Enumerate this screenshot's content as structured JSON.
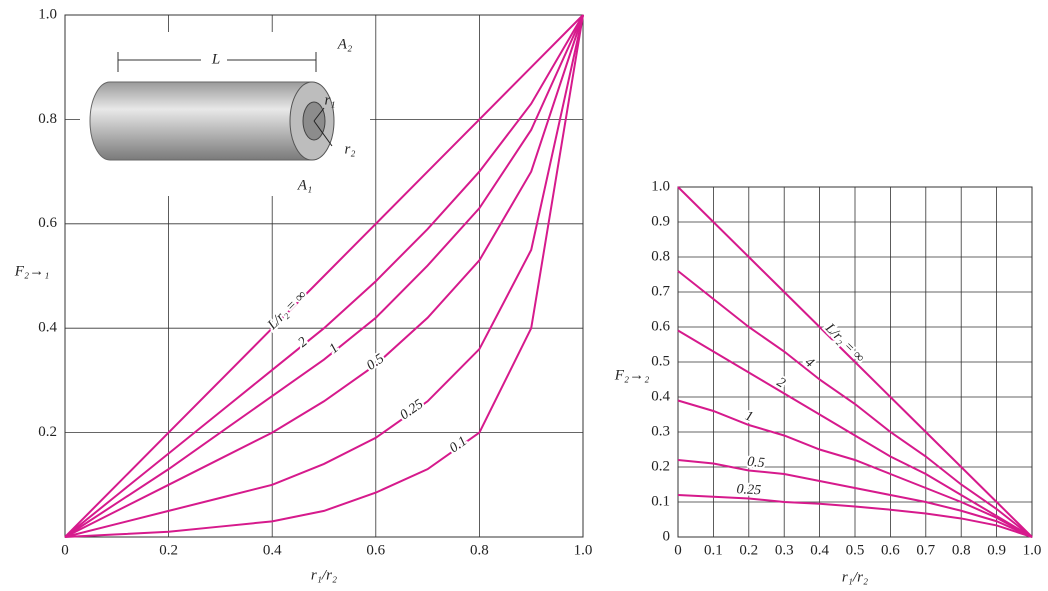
{
  "chart_data": [
    {
      "type": "line",
      "x": [
        0,
        0.1,
        0.2,
        0.3,
        0.4,
        0.5,
        0.6,
        0.7,
        0.8,
        0.9,
        1
      ],
      "xlim": [
        0,
        1
      ],
      "ylim": [
        0,
        1
      ],
      "xticks": [
        0,
        0.2,
        0.4,
        0.6,
        0.8,
        {
          "value": 1,
          "label": "1.0"
        }
      ],
      "yticks": [
        0.2,
        0.4,
        0.6,
        0.8,
        {
          "value": 1,
          "label": "1.0"
        }
      ],
      "grid": true,
      "x_label": "r₁/r₂",
      "y_label": "F₂→₁",
      "annotations": [
        "L",
        "A₂",
        "r₁",
        "r₂",
        "A₁"
      ],
      "series": [
        {
          "name": "L/r₂ = ∞",
          "color": "#d61a8c",
          "values": [
            0,
            0.1,
            0.2,
            0.3,
            0.4,
            0.5,
            0.6,
            0.7,
            0.8,
            0.9,
            1
          ]
        },
        {
          "name": "2",
          "color": "#d61a8c",
          "values": [
            0,
            0.08,
            0.16,
            0.24,
            0.32,
            0.4,
            0.49,
            0.59,
            0.7,
            0.83,
            1
          ]
        },
        {
          "name": "1",
          "color": "#d61a8c",
          "values": [
            0,
            0.065,
            0.13,
            0.2,
            0.27,
            0.34,
            0.42,
            0.52,
            0.63,
            0.78,
            1
          ]
        },
        {
          "name": "0.5",
          "color": "#d61a8c",
          "values": [
            0,
            0.05,
            0.1,
            0.15,
            0.2,
            0.26,
            0.33,
            0.42,
            0.53,
            0.7,
            1
          ]
        },
        {
          "name": "0.25",
          "color": "#d61a8c",
          "values": [
            0,
            0.025,
            0.05,
            0.075,
            0.1,
            0.14,
            0.19,
            0.26,
            0.36,
            0.55,
            1
          ]
        },
        {
          "name": "0.1",
          "color": "#d61a8c",
          "values": [
            0,
            0.005,
            0.01,
            0.02,
            0.03,
            0.05,
            0.085,
            0.13,
            0.2,
            0.4,
            1
          ]
        }
      ]
    },
    {
      "type": "line",
      "x": [
        0,
        0.1,
        0.2,
        0.3,
        0.4,
        0.5,
        0.6,
        0.7,
        0.8,
        0.9,
        1
      ],
      "xlim": [
        0,
        1
      ],
      "ylim": [
        0,
        1
      ],
      "xticks": [
        0,
        0.1,
        0.2,
        0.3,
        0.4,
        0.5,
        0.6,
        0.7,
        0.8,
        0.9,
        {
          "value": 1,
          "label": "1.0"
        }
      ],
      "yticks": [
        0,
        0.1,
        0.2,
        0.3,
        0.4,
        0.5,
        0.6,
        0.7,
        0.8,
        0.9,
        {
          "value": 1,
          "label": "1.0"
        }
      ],
      "grid": true,
      "x_label": "r₁/r₂",
      "y_label": "F₂→₂",
      "series": [
        {
          "name": "L/r₂ = ∞",
          "color": "#d61a8c",
          "values": [
            1,
            0.9,
            0.8,
            0.7,
            0.6,
            0.5,
            0.4,
            0.3,
            0.2,
            0.1,
            0
          ]
        },
        {
          "name": "4",
          "color": "#d61a8c",
          "values": [
            0.76,
            0.68,
            0.6,
            0.53,
            0.45,
            0.38,
            0.3,
            0.23,
            0.15,
            0.08,
            0
          ]
        },
        {
          "name": "2",
          "color": "#d61a8c",
          "values": [
            0.59,
            0.53,
            0.47,
            0.41,
            0.35,
            0.29,
            0.23,
            0.18,
            0.12,
            0.06,
            0
          ]
        },
        {
          "name": "1",
          "color": "#d61a8c",
          "values": [
            0.39,
            0.36,
            0.32,
            0.29,
            0.25,
            0.22,
            0.18,
            0.14,
            0.1,
            0.055,
            0
          ]
        },
        {
          "name": "0.5",
          "color": "#d61a8c",
          "values": [
            0.22,
            0.21,
            0.19,
            0.18,
            0.16,
            0.14,
            0.12,
            0.1,
            0.075,
            0.045,
            0
          ]
        },
        {
          "name": "0.25",
          "color": "#d61a8c",
          "values": [
            0.12,
            0.115,
            0.11,
            0.1,
            0.095,
            0.087,
            0.078,
            0.067,
            0.053,
            0.033,
            0
          ]
        }
      ]
    }
  ]
}
